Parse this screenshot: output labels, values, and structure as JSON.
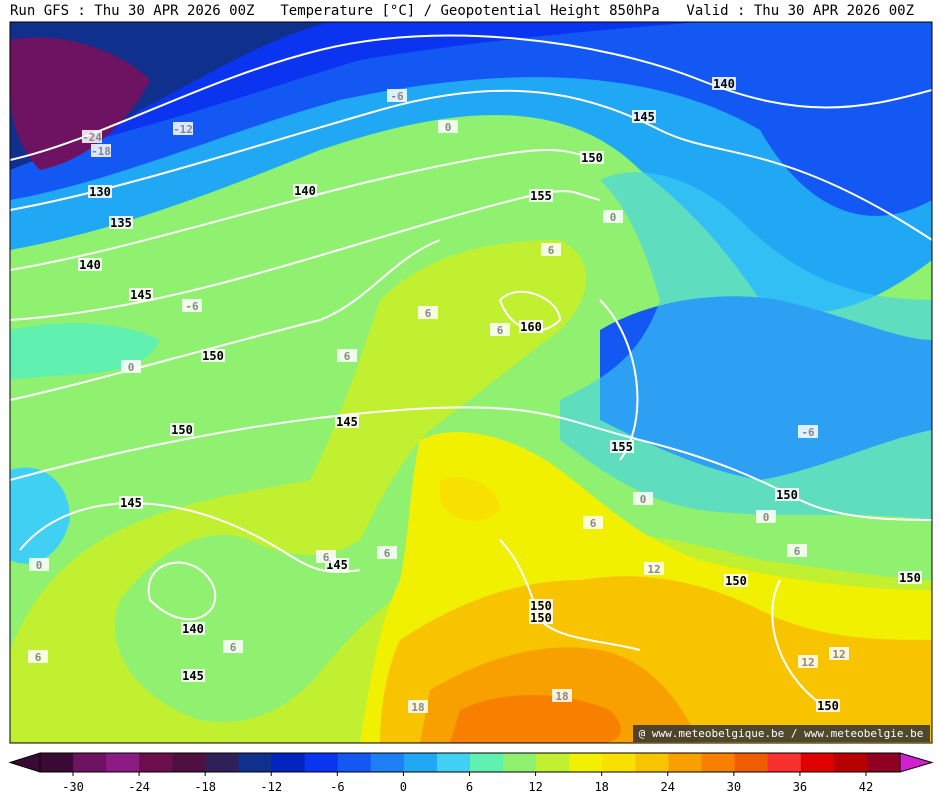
{
  "header": {
    "run": "Run GFS : Thu 30 APR 2026 00Z",
    "title": "Temperature [°C] / Geopotential Height 850hPa",
    "valid": "Valid : Thu 30 APR 2026 00Z"
  },
  "height_labels": [
    140,
    145,
    150,
    155,
    140,
    130,
    135,
    140,
    145,
    160,
    150,
    150,
    145,
    155,
    150,
    145,
    145,
    150,
    150,
    150,
    150,
    140,
    145,
    150
  ],
  "temperature_labels": [
    -6,
    -12,
    -24,
    -18,
    0,
    0,
    6,
    6,
    6,
    -6,
    0,
    6,
    -6,
    0,
    0,
    6,
    6,
    6,
    6,
    0,
    12,
    6,
    6,
    12,
    12,
    18,
    18
  ],
  "colorbar": {
    "ticks": [
      -30,
      -24,
      -18,
      -12,
      -6,
      0,
      6,
      12,
      18,
      24,
      30,
      36,
      42
    ],
    "colors": [
      "#3a0a34",
      "#6e1262",
      "#8c1c84",
      "#6c0e4c",
      "#4e1040",
      "#302058",
      "#10308e",
      "#0424c0",
      "#0a34f0",
      "#1458f4",
      "#1c80f4",
      "#20a8f4",
      "#40d0f4",
      "#60f0b0",
      "#90f070",
      "#c0f030",
      "#f0f000",
      "#f8e000",
      "#f8c400",
      "#f8a000",
      "#f88000",
      "#f05c00",
      "#f83030",
      "#e00000",
      "#b80000",
      "#900020"
    ]
  },
  "watermark": "@ www.meteobelgique.be / www.meteobelgie.be"
}
